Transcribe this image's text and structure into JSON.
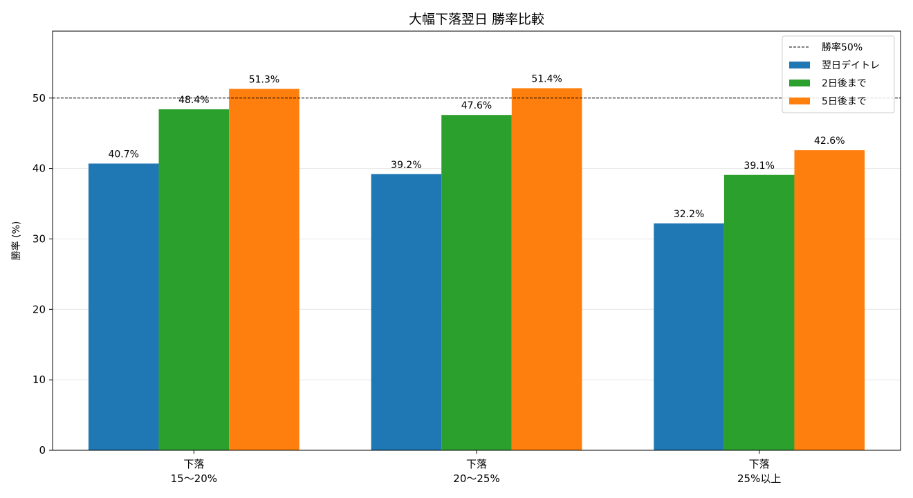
{
  "chart_data": {
    "type": "bar",
    "title": "大幅下落翌日 勝率比較",
    "xlabel": "",
    "ylabel": "勝率 (%)",
    "categories": [
      [
        "下落",
        "15〜20%"
      ],
      [
        "下落",
        "20〜25%"
      ],
      [
        "下落",
        "25%以上"
      ]
    ],
    "series": [
      {
        "name": "翌日デイトレ",
        "color": "#1f77b4",
        "values": [
          40.7,
          39.2,
          32.2
        ],
        "labels": [
          "40.7%",
          "39.2%",
          "32.2%"
        ]
      },
      {
        "name": "2日後まで",
        "color": "#2ca02c",
        "values": [
          48.4,
          47.6,
          39.1
        ],
        "labels": [
          "48.4%",
          "47.6%",
          "39.1%"
        ]
      },
      {
        "name": "5日後まで",
        "color": "#ff7f0e",
        "values": [
          51.3,
          51.4,
          42.6
        ],
        "labels": [
          "51.3%",
          "51.4%",
          "42.6%"
        ]
      }
    ],
    "reference_line": {
      "name": "勝率50%",
      "value": 50,
      "style": "dashed",
      "color": "#000000"
    },
    "ylim": [
      0,
      59.5
    ],
    "yticks": [
      0,
      10,
      20,
      30,
      40,
      50
    ],
    "ytick_labels": [
      "0",
      "10",
      "20",
      "30",
      "40",
      "50"
    ],
    "grid": "horizontal",
    "legend_position": "top-right"
  }
}
